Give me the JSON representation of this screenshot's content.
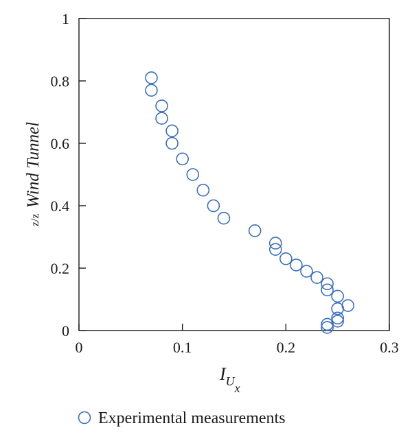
{
  "chart_data": {
    "type": "scatter",
    "title": "",
    "xlabel": {
      "main": "I",
      "sub1": "U",
      "sub2": "x"
    },
    "ylabel": {
      "prefix": "z/z",
      "main": "Wind Tunnel"
    },
    "xlim": [
      0,
      0.3
    ],
    "ylim": [
      0,
      1
    ],
    "xticks": [
      0,
      0.1,
      0.2,
      0.3
    ],
    "xtick_labels": [
      "0",
      "0.1",
      "0.2",
      "0.3"
    ],
    "yticks": [
      0,
      0.2,
      0.4,
      0.6,
      0.8,
      1
    ],
    "ytick_labels": [
      "0",
      "0.2",
      "0.4",
      "0.6",
      "0.8",
      "1"
    ],
    "grid": false,
    "legend_position": "bottom-center",
    "series": [
      {
        "name": "Experimental measurements",
        "color": "#3a6fbf",
        "marker": "open-circle",
        "points": [
          [
            0.07,
            0.81
          ],
          [
            0.07,
            0.77
          ],
          [
            0.08,
            0.72
          ],
          [
            0.08,
            0.68
          ],
          [
            0.09,
            0.64
          ],
          [
            0.09,
            0.6
          ],
          [
            0.1,
            0.55
          ],
          [
            0.11,
            0.5
          ],
          [
            0.12,
            0.45
          ],
          [
            0.13,
            0.4
          ],
          [
            0.14,
            0.36
          ],
          [
            0.17,
            0.32
          ],
          [
            0.19,
            0.28
          ],
          [
            0.19,
            0.26
          ],
          [
            0.2,
            0.23
          ],
          [
            0.21,
            0.21
          ],
          [
            0.22,
            0.19
          ],
          [
            0.23,
            0.17
          ],
          [
            0.24,
            0.15
          ],
          [
            0.24,
            0.13
          ],
          [
            0.25,
            0.11
          ],
          [
            0.26,
            0.08
          ],
          [
            0.25,
            0.07
          ],
          [
            0.25,
            0.04
          ],
          [
            0.25,
            0.03
          ],
          [
            0.24,
            0.02
          ],
          [
            0.24,
            0.01
          ]
        ]
      }
    ]
  }
}
